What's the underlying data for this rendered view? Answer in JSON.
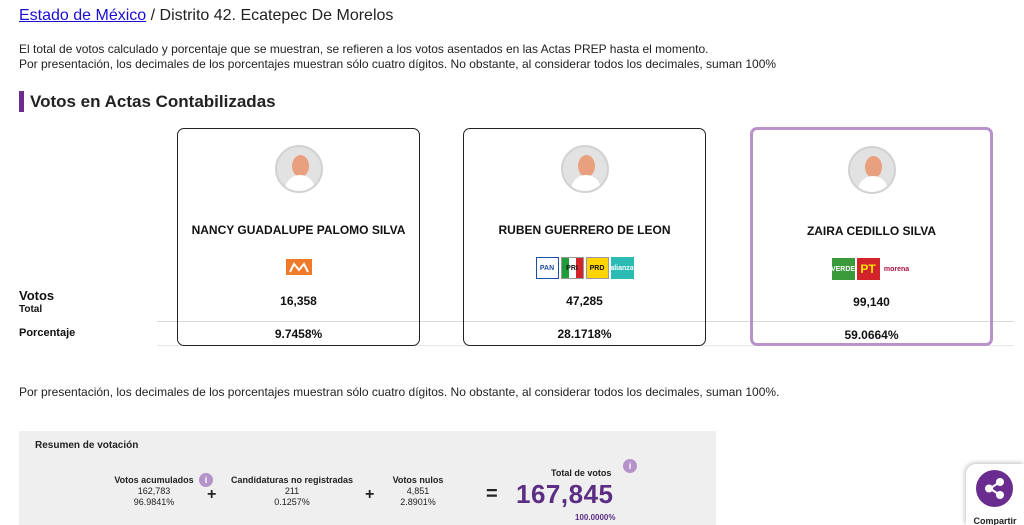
{
  "breadcrumb": {
    "state_link": "Estado de México",
    "rest": " / Distrito 42. Ecatepec De Morelos"
  },
  "intro": {
    "line1": "El total de votos calculado y porcentaje que se muestran, se refieren a los votos asentados en las Actas PREP hasta el momento.",
    "line2": "Por presentación, los decimales de los porcentajes muestran sólo cuatro dígitos. No obstante, al considerar todos los decimales, suman 100%"
  },
  "section_title": "Votos en Actas Contabilizadas",
  "row_labels": {
    "votos": "Votos",
    "total": "Total",
    "porcentaje": "Porcentaje"
  },
  "candidates": [
    {
      "name": "NANCY GUADALUPE PALOMO SILVA",
      "votes": "16,358",
      "percent": "9.7458%",
      "logos": [
        {
          "icon": "movimiento-ciudadano-logo",
          "text": "MC"
        }
      ]
    },
    {
      "name": "RUBEN GUERRERO DE LEON",
      "votes": "47,285",
      "percent": "28.1718%",
      "logos": [
        {
          "icon": "pan-logo",
          "text": "PAN"
        },
        {
          "icon": "pri-logo",
          "text": "PRI"
        },
        {
          "icon": "prd-logo",
          "text": "PRD"
        },
        {
          "icon": "alianza-logo",
          "text": "alianza"
        }
      ]
    },
    {
      "name": "ZAIRA CEDILLO SILVA",
      "votes": "99,140",
      "percent": "59.0664%",
      "logos": [
        {
          "icon": "verde-logo",
          "text": "VERDE"
        },
        {
          "icon": "pt-logo",
          "text": "PT"
        },
        {
          "icon": "morena-logo",
          "text": "morena"
        }
      ]
    }
  ],
  "note": "Por presentación, los decimales de los porcentajes muestran sólo cuatro dígitos. No obstante, al considerar todos los decimales, suman 100%.",
  "summary": {
    "title": "Resumen de votación",
    "accumulated": {
      "label": "Votos acumulados",
      "value": "162,783",
      "percent": "96.9841%"
    },
    "unregistered": {
      "label": "Candidaturas no registradas",
      "value": "211",
      "percent": "0.1257%"
    },
    "null_votes": {
      "label": "Votos nulos",
      "value": "4,851",
      "percent": "2.8901%"
    },
    "total": {
      "label": "Total de votos",
      "value": "167,845",
      "percent": "100.0000%"
    },
    "plus": "+",
    "equals": "=",
    "info": "i"
  },
  "share": {
    "label": "Compartir"
  },
  "colors": {
    "accent": "#6a2c8e",
    "highlight_border": "#b892c8",
    "link": "#1a0dd6",
    "total_value": "#5c2d84"
  }
}
